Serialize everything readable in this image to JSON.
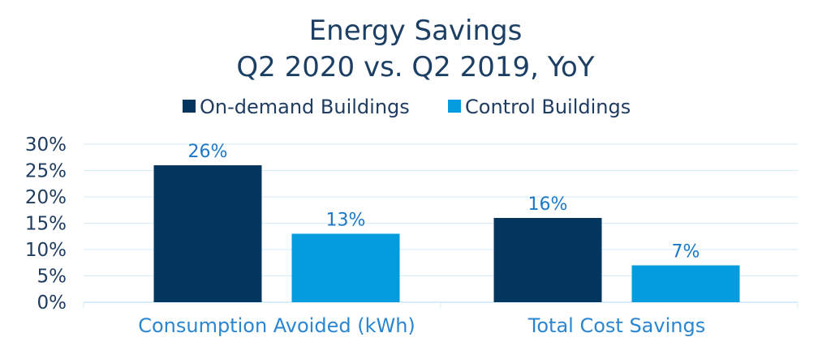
{
  "chart_data": {
    "type": "bar",
    "title": "Energy Savings",
    "subtitle": "Q2 2020 vs. Q2 2019, YoY",
    "categories": [
      "Consumption Avoided (kWh)",
      "Total Cost Savings"
    ],
    "series": [
      {
        "name": "On-demand Buildings",
        "values": [
          26,
          16
        ],
        "labels": [
          "26%",
          "16%"
        ]
      },
      {
        "name": "Control Buildings",
        "values": [
          13,
          7
        ],
        "labels": [
          "13%",
          "7%"
        ]
      }
    ],
    "ylim": [
      0,
      30
    ],
    "yticks": [
      {
        "value": 0,
        "label": "0%"
      },
      {
        "value": 5,
        "label": "5%"
      },
      {
        "value": 10,
        "label": "10%"
      },
      {
        "value": 15,
        "label": "15%"
      },
      {
        "value": 20,
        "label": "20%"
      },
      {
        "value": 25,
        "label": "25%"
      },
      {
        "value": 30,
        "label": "30%"
      }
    ],
    "xlabel": "",
    "ylabel": "",
    "grid": true,
    "legend_position": "top-center"
  },
  "colors": {
    "on_demand": "#03365F",
    "control": "#049BDF",
    "title_text": "#1D3F63",
    "axis_text": "#1F3C61",
    "data_label_text": "#1B78C9",
    "category_text": "#2B86D2",
    "grid": "#D7EEF9",
    "axis_line": "#D7EEF9"
  }
}
